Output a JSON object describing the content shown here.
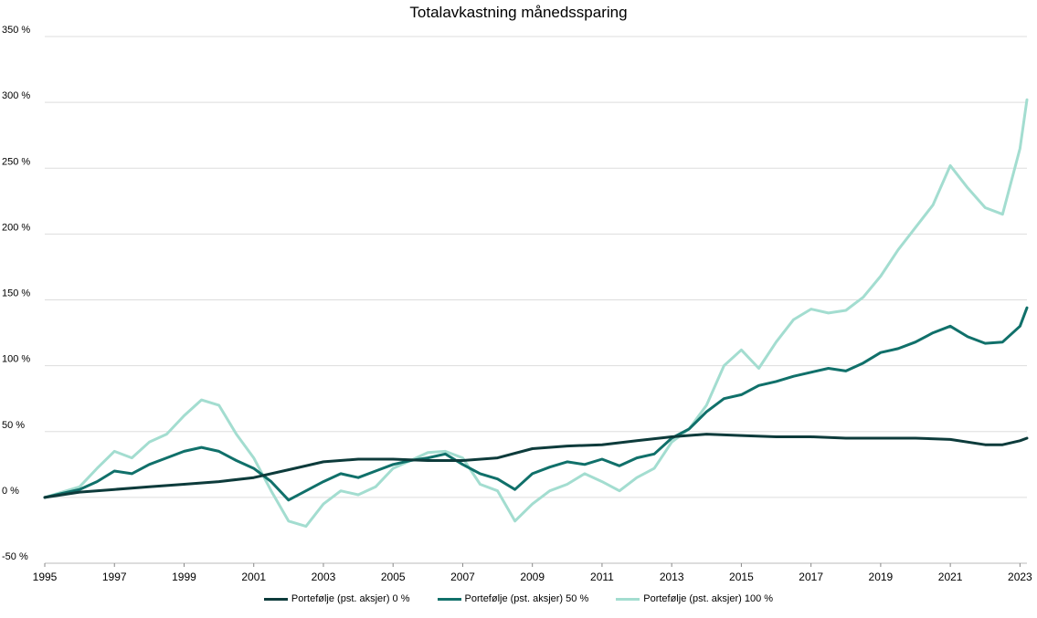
{
  "chart_data": {
    "type": "line",
    "title": "Totalavkastning månedssparing",
    "xlabel": "",
    "ylabel": "",
    "x_ticks": [
      "1995",
      "1997",
      "1999",
      "2001",
      "2003",
      "2005",
      "2007",
      "2009",
      "2011",
      "2013",
      "2015",
      "2017",
      "2019",
      "2021",
      "2023"
    ],
    "y_ticks": [
      "350 %",
      "300 %",
      "250 %",
      "200 %",
      "150 %",
      "100 %",
      "50 %",
      "0 %",
      "-50 %"
    ],
    "xlim": [
      1995.0,
      2023.2
    ],
    "ylim": [
      -50,
      350
    ],
    "grid": "horizontal",
    "legend_position": "bottom",
    "series": [
      {
        "name": "Portefølje (pst. aksjer) 0 %",
        "color": "#0d3b3b",
        "x": [
          1995.0,
          1996.0,
          1997.0,
          1998.0,
          1999.0,
          2000.0,
          2001.0,
          2002.0,
          2003.0,
          2004.0,
          2005.0,
          2006.0,
          2007.0,
          2008.0,
          2009.0,
          2010.0,
          2011.0,
          2012.0,
          2013.0,
          2014.0,
          2015.0,
          2016.0,
          2017.0,
          2018.0,
          2019.0,
          2020.0,
          2021.0,
          2022.0,
          2022.5,
          2023.0,
          2023.2
        ],
        "values": [
          0,
          4,
          6,
          8,
          10,
          12,
          15,
          21,
          27,
          29,
          29,
          28,
          28,
          30,
          37,
          39,
          40,
          43,
          46,
          48,
          47,
          46,
          46,
          45,
          45,
          45,
          44,
          40,
          40,
          43,
          45
        ]
      },
      {
        "name": "Portefølje (pst. aksjer) 50 %",
        "color": "#10706a",
        "x": [
          1995.0,
          1995.5,
          1996.0,
          1996.5,
          1997.0,
          1997.5,
          1998.0,
          1998.5,
          1999.0,
          1999.5,
          2000.0,
          2000.5,
          2001.0,
          2001.5,
          2002.0,
          2002.5,
          2003.0,
          2003.5,
          2004.0,
          2004.5,
          2005.0,
          2005.5,
          2006.0,
          2006.5,
          2007.0,
          2007.5,
          2008.0,
          2008.5,
          2009.0,
          2009.5,
          2010.0,
          2010.5,
          2011.0,
          2011.5,
          2012.0,
          2012.5,
          2013.0,
          2013.5,
          2014.0,
          2014.5,
          2015.0,
          2015.5,
          2016.0,
          2016.5,
          2017.0,
          2017.5,
          2018.0,
          2018.5,
          2019.0,
          2019.5,
          2020.0,
          2020.5,
          2021.0,
          2021.5,
          2022.0,
          2022.5,
          2023.0,
          2023.2
        ],
        "values": [
          0,
          3,
          6,
          12,
          20,
          18,
          25,
          30,
          35,
          38,
          35,
          28,
          22,
          12,
          -2,
          5,
          12,
          18,
          15,
          20,
          25,
          28,
          30,
          33,
          25,
          18,
          14,
          6,
          18,
          23,
          27,
          25,
          29,
          24,
          30,
          33,
          45,
          52,
          65,
          75,
          78,
          85,
          88,
          92,
          95,
          98,
          96,
          102,
          110,
          113,
          118,
          125,
          130,
          122,
          117,
          118,
          130,
          144
        ]
      },
      {
        "name": "Portefølje (pst. aksjer) 100 %",
        "color": "#a3ddd0",
        "x": [
          1995.0,
          1995.5,
          1996.0,
          1996.5,
          1997.0,
          1997.5,
          1998.0,
          1998.5,
          1999.0,
          1999.5,
          2000.0,
          2000.5,
          2001.0,
          2001.5,
          2002.0,
          2002.5,
          2003.0,
          2003.5,
          2004.0,
          2004.5,
          2005.0,
          2005.5,
          2006.0,
          2006.5,
          2007.0,
          2007.5,
          2008.0,
          2008.5,
          2009.0,
          2009.5,
          2010.0,
          2010.5,
          2011.0,
          2011.5,
          2012.0,
          2012.5,
          2013.0,
          2013.5,
          2014.0,
          2014.5,
          2015.0,
          2015.5,
          2016.0,
          2016.5,
          2017.0,
          2017.5,
          2018.0,
          2018.5,
          2019.0,
          2019.5,
          2020.0,
          2020.5,
          2021.0,
          2021.5,
          2022.0,
          2022.5,
          2023.0,
          2023.2
        ],
        "values": [
          0,
          4,
          8,
          22,
          35,
          30,
          42,
          48,
          62,
          74,
          70,
          48,
          30,
          5,
          -18,
          -22,
          -5,
          5,
          2,
          8,
          22,
          28,
          34,
          35,
          30,
          10,
          5,
          -18,
          -5,
          5,
          10,
          18,
          12,
          5,
          15,
          22,
          42,
          52,
          70,
          100,
          112,
          98,
          118,
          135,
          143,
          140,
          142,
          152,
          168,
          188,
          205,
          222,
          252,
          235,
          220,
          215,
          265,
          302
        ]
      }
    ]
  }
}
